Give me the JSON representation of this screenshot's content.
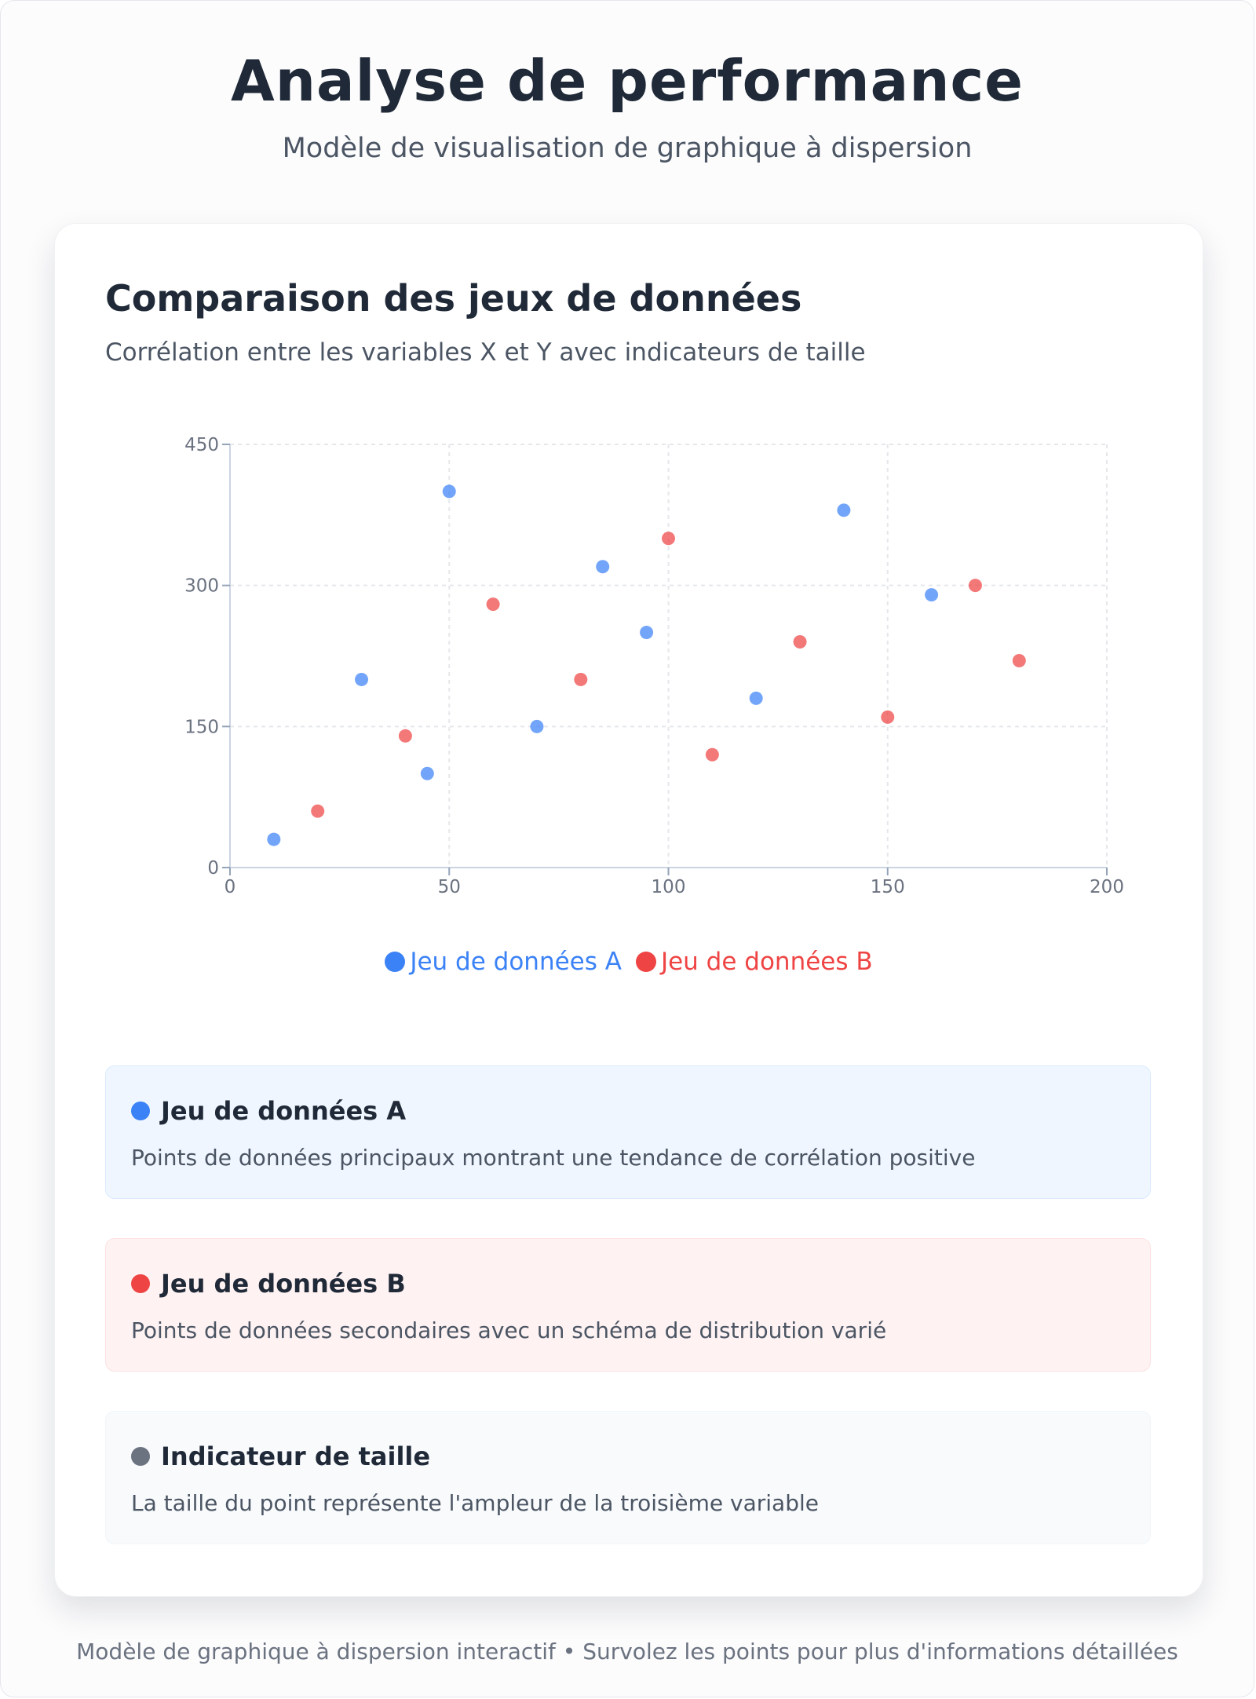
{
  "header": {
    "title": "Analyse de performance",
    "subtitle": "Modèle de visualisation de graphique à dispersion"
  },
  "card": {
    "title": "Comparaison des jeux de données",
    "subtitle": "Corrélation entre les variables X et Y avec indicateurs de taille"
  },
  "colors": {
    "series_a": "#3b82f6",
    "series_b": "#ef4444",
    "size_indicator": "#6b7280"
  },
  "chart_data": {
    "type": "scatter",
    "title": "Comparaison des jeux de données",
    "xlabel": "",
    "ylabel": "",
    "xlim": [
      0,
      200
    ],
    "ylim": [
      0,
      450
    ],
    "xticks": [
      0,
      50,
      100,
      150,
      200
    ],
    "yticks": [
      0,
      150,
      300,
      450
    ],
    "grid": true,
    "legend_position": "bottom-center",
    "series": [
      {
        "name": "Jeu de données A",
        "color": "#3b82f6",
        "points": [
          {
            "x": 10,
            "y": 30
          },
          {
            "x": 30,
            "y": 200
          },
          {
            "x": 45,
            "y": 100
          },
          {
            "x": 50,
            "y": 400
          },
          {
            "x": 70,
            "y": 150
          },
          {
            "x": 85,
            "y": 320
          },
          {
            "x": 95,
            "y": 250
          },
          {
            "x": 120,
            "y": 180
          },
          {
            "x": 140,
            "y": 380
          },
          {
            "x": 160,
            "y": 290
          }
        ]
      },
      {
        "name": "Jeu de données B",
        "color": "#ef4444",
        "points": [
          {
            "x": 20,
            "y": 60
          },
          {
            "x": 40,
            "y": 140
          },
          {
            "x": 60,
            "y": 280
          },
          {
            "x": 80,
            "y": 200
          },
          {
            "x": 100,
            "y": 350
          },
          {
            "x": 110,
            "y": 120
          },
          {
            "x": 130,
            "y": 240
          },
          {
            "x": 150,
            "y": 160
          },
          {
            "x": 170,
            "y": 300
          },
          {
            "x": 180,
            "y": 220
          }
        ]
      }
    ]
  },
  "legend": {
    "a_label": "Jeu de données A",
    "b_label": "Jeu de données B"
  },
  "info": {
    "a": {
      "title": "Jeu de données A",
      "description": "Points de données principaux montrant une tendance de corrélation positive"
    },
    "b": {
      "title": "Jeu de données B",
      "description": "Points de données secondaires avec un schéma de distribution varié"
    },
    "c": {
      "title": "Indicateur de taille",
      "description": "La taille du point représente l'ampleur de la troisième variable"
    }
  },
  "footer": {
    "text": "Modèle de graphique à dispersion interactif • Survolez les points pour plus d'informations détaillées"
  }
}
